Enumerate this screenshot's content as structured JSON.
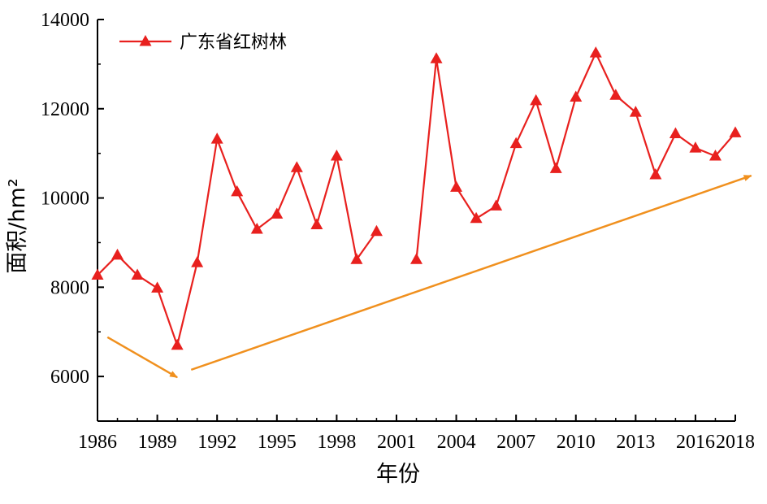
{
  "chart_data": {
    "type": "line",
    "xlabel": "年份",
    "ylabel": "面积/hm²",
    "xlim": [
      1986,
      2018
    ],
    "ylim": [
      5000,
      14000
    ],
    "x_ticks": [
      1986,
      1989,
      1992,
      1995,
      1998,
      2001,
      2004,
      2007,
      2010,
      2013,
      2016,
      2018
    ],
    "y_ticks": [
      6000,
      8000,
      10000,
      12000,
      14000
    ],
    "legend_position": "top-left",
    "grid": false,
    "series": [
      {
        "name": "广东省红树林",
        "color": "#e8201e",
        "marker": "triangle",
        "points": [
          {
            "x": 1986,
            "y": 8270
          },
          {
            "x": 1987,
            "y": 8720
          },
          {
            "x": 1988,
            "y": 8270
          },
          {
            "x": 1989,
            "y": 7980
          },
          {
            "x": 1990,
            "y": 6700
          },
          {
            "x": 1991,
            "y": 8550
          },
          {
            "x": 1992,
            "y": 11320
          },
          {
            "x": 1993,
            "y": 10140
          },
          {
            "x": 1994,
            "y": 9300
          },
          {
            "x": 1995,
            "y": 9640
          },
          {
            "x": 1996,
            "y": 10680
          },
          {
            "x": 1997,
            "y": 9400
          },
          {
            "x": 1998,
            "y": 10940
          },
          {
            "x": 1999,
            "y": 8620
          },
          {
            "x": 2000,
            "y": 9250
          },
          {
            "x": 2002,
            "y": 8620
          },
          {
            "x": 2003,
            "y": 13120
          },
          {
            "x": 2004,
            "y": 10240
          },
          {
            "x": 2005,
            "y": 9540
          },
          {
            "x": 2006,
            "y": 9820
          },
          {
            "x": 2007,
            "y": 11220
          },
          {
            "x": 2008,
            "y": 12180
          },
          {
            "x": 2009,
            "y": 10660
          },
          {
            "x": 2010,
            "y": 12260
          },
          {
            "x": 2011,
            "y": 13250
          },
          {
            "x": 2012,
            "y": 12300
          },
          {
            "x": 2013,
            "y": 11920
          },
          {
            "x": 2014,
            "y": 10520
          },
          {
            "x": 2015,
            "y": 11440
          },
          {
            "x": 2016,
            "y": 11120
          },
          {
            "x": 2017,
            "y": 10940
          },
          {
            "x": 2018,
            "y": 11460
          }
        ]
      }
    ],
    "annotations": [
      {
        "kind": "trend-arrow",
        "color": "#f0901e",
        "from": {
          "x": 1986.5,
          "y": 6880
        },
        "to": {
          "x": 1990.0,
          "y": 5980
        }
      },
      {
        "kind": "trend-arrow",
        "color": "#f0901e",
        "from": {
          "x": 1990.7,
          "y": 6150
        },
        "to": {
          "x": 2018.8,
          "y": 10500
        }
      }
    ]
  }
}
